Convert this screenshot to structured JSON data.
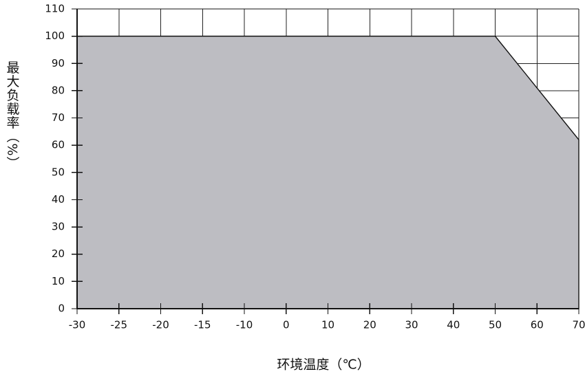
{
  "chart_data": {
    "type": "area",
    "title": "",
    "xlabel": "环境温度（℃）",
    "ylabel": "最大负载率（%）",
    "x": [
      -30,
      50,
      70
    ],
    "series": [
      {
        "values": [
          100,
          100,
          62
        ]
      }
    ],
    "xlim": [
      -30,
      70
    ],
    "ylim": [
      0,
      110
    ],
    "x_ticks": [
      -30,
      -25,
      -20,
      -15,
      -10,
      0,
      10,
      20,
      30,
      40,
      50,
      60,
      70
    ],
    "y_ticks": [
      0,
      10,
      20,
      30,
      40,
      50,
      60,
      70,
      80,
      90,
      100,
      110
    ],
    "grid": true,
    "colors": {
      "area": "#bdbdc2",
      "grid": "#222222",
      "axis": "#111111",
      "background": "#ffffff"
    }
  }
}
